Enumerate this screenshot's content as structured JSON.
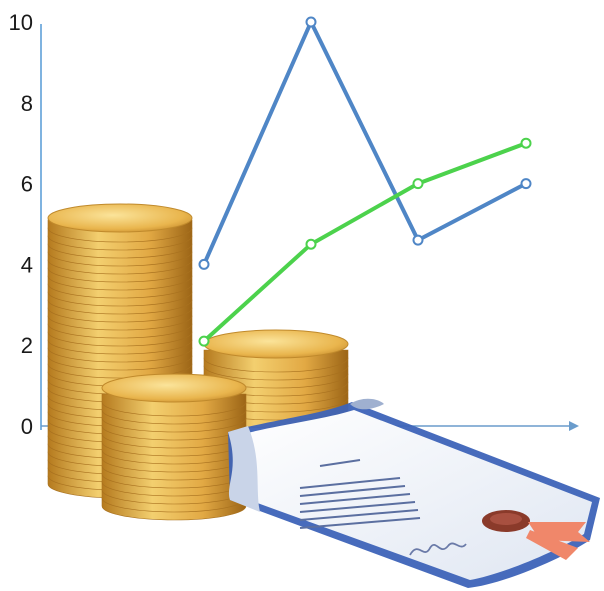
{
  "chart_data": {
    "type": "line",
    "title": "",
    "xlabel": "",
    "ylabel": "",
    "ylim": [
      0,
      10
    ],
    "yticks": [
      "0",
      "2",
      "4",
      "6",
      "8",
      "10"
    ],
    "x": [
      1,
      2,
      3,
      4
    ],
    "grid": false,
    "series": [
      {
        "color": "#4f86c6",
        "values": [
          4,
          10,
          4.6,
          6
        ]
      },
      {
        "color": "#4cd24c",
        "values": [
          2.1,
          4.5,
          6,
          7
        ]
      }
    ]
  },
  "illustration": {
    "coins_color": "#d9a53a",
    "document_border_color": "#3d63b8",
    "seal_color": "#8a3a2a",
    "ribbon_color": "#f0876a"
  }
}
